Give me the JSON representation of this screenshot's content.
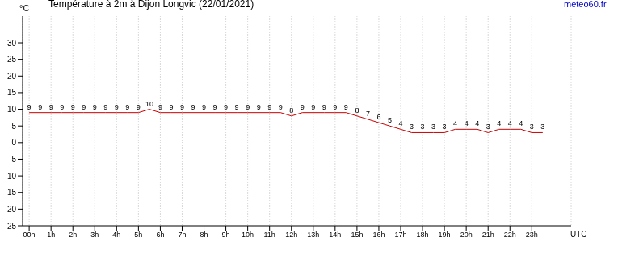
{
  "chart_data": {
    "type": "line",
    "title": "Température à 2m à Dijon Longvic (22/01/2021)",
    "source": "meteo60.fr",
    "y_label": "°C",
    "x_label": "UTC",
    "x": [
      0,
      0.5,
      1,
      1.5,
      2,
      2.5,
      3,
      3.5,
      4,
      4.5,
      5,
      5.5,
      6,
      6.5,
      7,
      7.5,
      8,
      8.5,
      9,
      9.5,
      10,
      10.5,
      11,
      11.5,
      12,
      12.5,
      13,
      13.5,
      14,
      14.5,
      15,
      15.5,
      16,
      16.5,
      17,
      17.5,
      18,
      18.5,
      19,
      19.5,
      20,
      20.5,
      21,
      21.5,
      22,
      22.5,
      23,
      23.5
    ],
    "values": [
      9,
      9,
      9,
      9,
      9,
      9,
      9,
      9,
      9,
      9,
      9,
      10,
      9,
      9,
      9,
      9,
      9,
      9,
      9,
      9,
      9,
      9,
      9,
      9,
      8,
      9,
      9,
      9,
      9,
      9,
      8,
      7,
      6,
      5,
      4,
      3,
      3,
      3,
      3,
      4,
      4,
      4,
      3,
      4,
      4,
      4,
      3,
      3
    ],
    "color": "#cc0000",
    "xlim": [
      -0.3,
      24.8
    ],
    "xticks": [
      {
        "value": 0,
        "label": "00h"
      },
      {
        "value": 1,
        "label": "1h"
      },
      {
        "value": 2,
        "label": "2h"
      },
      {
        "value": 3,
        "label": "3h"
      },
      {
        "value": 4,
        "label": "4h"
      },
      {
        "value": 5,
        "label": "5h"
      },
      {
        "value": 6,
        "label": "6h"
      },
      {
        "value": 7,
        "label": "7h"
      },
      {
        "value": 8,
        "label": "8h"
      },
      {
        "value": 9,
        "label": "9h"
      },
      {
        "value": 10,
        "label": "10h"
      },
      {
        "value": 11,
        "label": "11h"
      },
      {
        "value": 12,
        "label": "12h"
      },
      {
        "value": 13,
        "label": "13h"
      },
      {
        "value": 14,
        "label": "14h"
      },
      {
        "value": 15,
        "label": "15h"
      },
      {
        "value": 16,
        "label": "16h"
      },
      {
        "value": 17,
        "label": "17h"
      },
      {
        "value": 18,
        "label": "18h"
      },
      {
        "value": 19,
        "label": "19h"
      },
      {
        "value": 20,
        "label": "20h"
      },
      {
        "value": 21,
        "label": "21h"
      },
      {
        "value": 22,
        "label": "22h"
      },
      {
        "value": 23,
        "label": "23h"
      }
    ],
    "ylim": [
      -25,
      38
    ],
    "yticks": [
      -25,
      -20,
      -15,
      -10,
      -5,
      0,
      5,
      10,
      15,
      20,
      25,
      30
    ],
    "grid": true,
    "data_labels": true
  }
}
